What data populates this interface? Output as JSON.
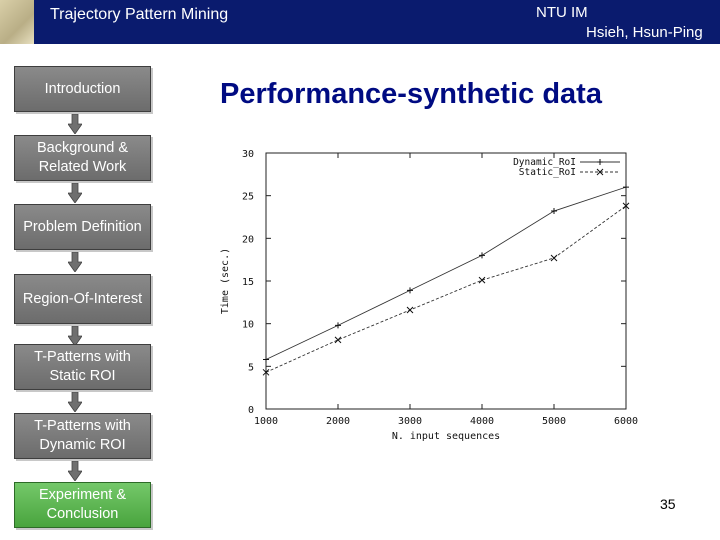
{
  "header": {
    "course_title": "Trajectory Pattern Mining",
    "department": "NTU IM",
    "author": "Hsieh, Hsun-Ping"
  },
  "slide": {
    "title": "Performance-synthetic data",
    "page_number": "35"
  },
  "nav": {
    "items": [
      {
        "label": "Introduction",
        "active": false
      },
      {
        "label": "Background & Related Work",
        "active": false
      },
      {
        "label": "Problem Definition",
        "active": false
      },
      {
        "label": "Region-Of-Interest",
        "active": false
      },
      {
        "label": "T-Patterns with Static ROI",
        "active": false
      },
      {
        "label": "T-Patterns with Dynamic ROI",
        "active": false
      },
      {
        "label": "Experiment & Conclusion",
        "active": true
      }
    ]
  },
  "chart_data": {
    "type": "line",
    "xlabel": "N. input sequences",
    "ylabel": "Time (sec.)",
    "x": [
      1000,
      2000,
      3000,
      4000,
      5000,
      6000
    ],
    "xticks": [
      "1000",
      "2000",
      "3000",
      "4000",
      "5000",
      "6000"
    ],
    "yticks": [
      "0",
      "5",
      "10",
      "15",
      "20",
      "25",
      "30"
    ],
    "xlim": [
      1000,
      6000
    ],
    "ylim": [
      0,
      30
    ],
    "grid": false,
    "legend_position": "top-right",
    "series": [
      {
        "name": "Dynamic_RoI",
        "marker": "+",
        "dash": "solid",
        "values": [
          5.8,
          9.8,
          13.9,
          18.0,
          23.2,
          26.0
        ]
      },
      {
        "name": "Static_RoI",
        "marker": "x",
        "dash": "dashed",
        "values": [
          4.3,
          8.1,
          11.6,
          15.1,
          17.7,
          23.8
        ]
      }
    ]
  }
}
